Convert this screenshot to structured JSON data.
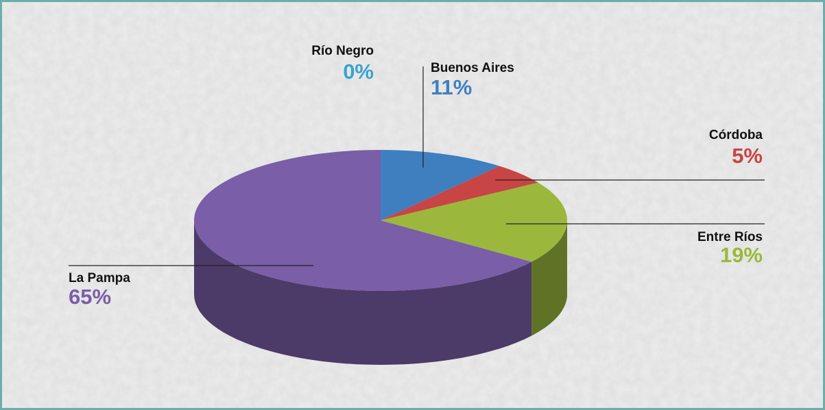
{
  "chart_data": {
    "type": "pie",
    "categories": [
      "Río Negro",
      "Buenos Aires",
      "Córdoba",
      "Entre Ríos",
      "La Pampa"
    ],
    "values": [
      0,
      11,
      5,
      19,
      65
    ],
    "value_labels": [
      "0%",
      "11%",
      "5%",
      "19%",
      "65%"
    ],
    "colors": [
      "#3aa3cc",
      "#3f7fc0",
      "#c94444",
      "#9bb83c",
      "#7a5ea8"
    ]
  }
}
